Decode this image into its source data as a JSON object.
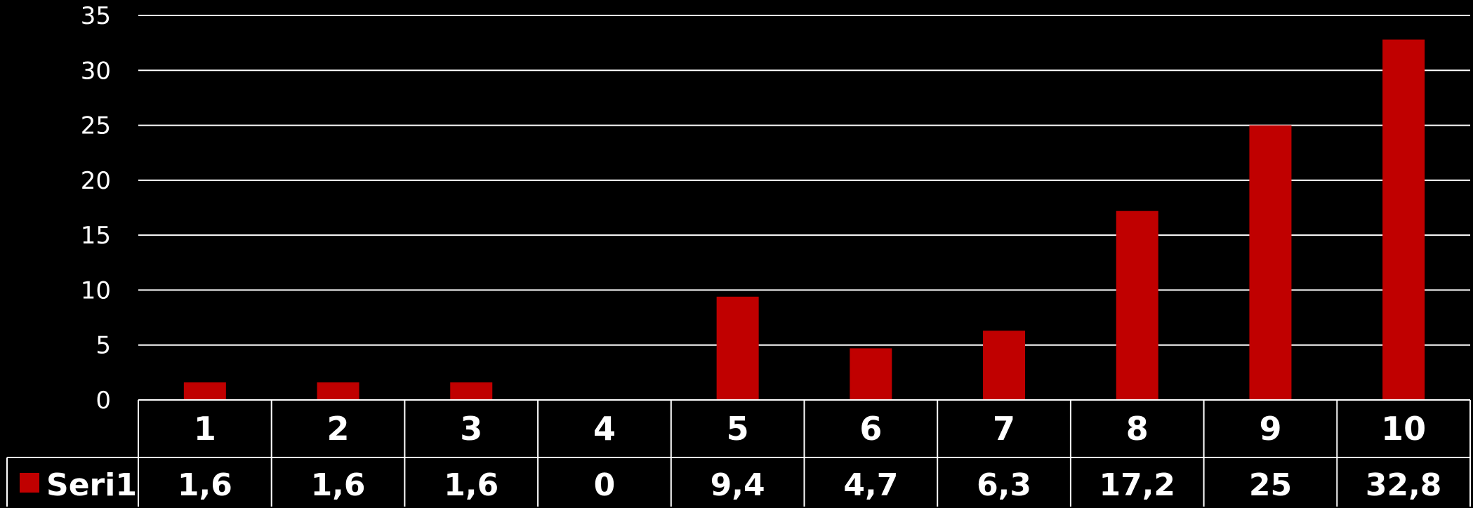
{
  "chart_data": {
    "type": "bar",
    "categories": [
      "1",
      "2",
      "3",
      "4",
      "5",
      "6",
      "7",
      "8",
      "9",
      "10"
    ],
    "series": [
      {
        "name": "Seri1",
        "values": [
          1.6,
          1.6,
          1.6,
          0,
          9.4,
          4.7,
          6.3,
          17.2,
          25,
          32.8
        ],
        "value_labels": [
          "1,6",
          "1,6",
          "1,6",
          "0",
          "9,4",
          "4,7",
          "6,3",
          "17,2",
          "25",
          "32,8"
        ],
        "color": "#C00000"
      }
    ],
    "yticks": [
      0,
      5,
      10,
      15,
      20,
      25,
      30,
      35
    ],
    "ylim": [
      0,
      35
    ],
    "grid": true,
    "legend": "data-table",
    "title": "",
    "xlabel": "",
    "ylabel": ""
  },
  "colors": {
    "background": "#000000",
    "bar": "#C00000",
    "grid": "#FFFFFF",
    "text": "#FFFFFF"
  }
}
